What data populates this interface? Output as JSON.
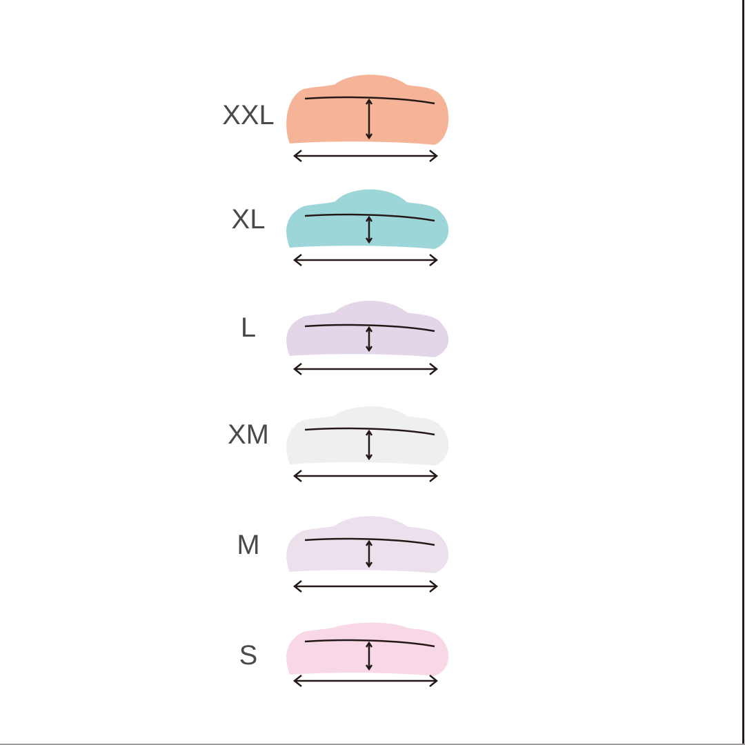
{
  "sizes": [
    {
      "label": "XXL",
      "color": "#F5B498"
    },
    {
      "label": "XL",
      "color": "#9DD6D9"
    },
    {
      "label": "L",
      "color": "#E3D6E9"
    },
    {
      "label": "XM",
      "color": "#EEF0EF"
    },
    {
      "label": "M",
      "color": "#ECE0ED"
    },
    {
      "label": "S",
      "color": "#F8D7E6"
    }
  ],
  "line_color": "#231816"
}
